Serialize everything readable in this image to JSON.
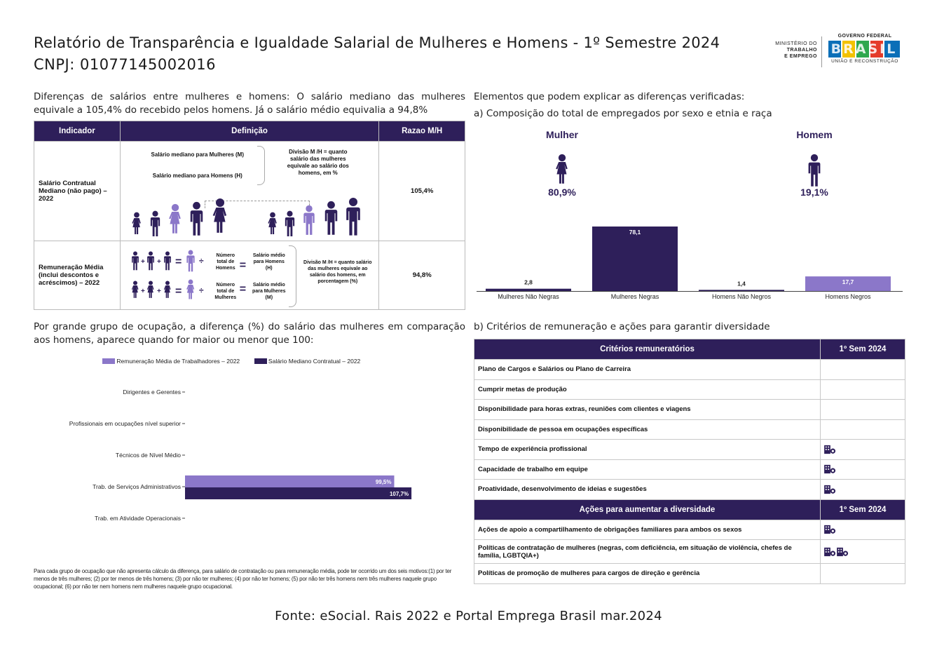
{
  "header": {
    "title": "Relatório de Transparência e Igualdade Salarial de Mulheres e Homens - 1º Semestre 2024",
    "cnpj": "CNPJ: 01077145002016",
    "ministry_logo": [
      "MINISTÉRIO DO",
      "TRABALHO",
      "E EMPREGO"
    ],
    "gov_logo_top": "GOVERNO FEDERAL",
    "gov_logo_word": "BRASIL",
    "gov_logo_bottom": "UNIÃO E RECONSTRUÇÃO"
  },
  "left_intro": "Diferenças de salários entre mulheres e homens: O salário mediano das mulheres equivale a 105,4% do recebido pelos homens. Já o salário médio equivalia a 94,8%",
  "indicator_table": {
    "headers": [
      "Indicador",
      "Definição",
      "Razao M/H"
    ],
    "row1": {
      "indicator": "Salário Contratual Mediano (não pago) – 2022",
      "def_w": "Salário mediano para Mulheres (M)",
      "def_h": "Salário mediano para Homens (H)",
      "def_div": "Divisão M /H = quanto salário das mulheres equivale ao salário dos homens, em %",
      "ratio": "105,4%"
    },
    "row2": {
      "indicator": "Remuneração Média (inclui descontos e acréscimos) – 2022",
      "n_men": "Número total de Homens",
      "avg_men": "Salário médio para Homens (H)",
      "n_women": "Número total de Mulheres",
      "avg_women": "Salário médio para Mulheres (M)",
      "def_div": "Divisão M /H = quanto salário das mulheres equivale ao salário dos homens, em porcentagem (%)",
      "ratio": "94,8%"
    }
  },
  "left_section2": "Por grande grupo de ocupação, a diferença (%) do salário das mulheres em comparação aos homens, aparece quando for maior ou menor que 100:",
  "footnote": "Para cada grupo de ocupação que não apresenta cálculo da diferença, para salário de contratação ou para remuneração média, pode ter ocorrido um dos seis motivos:(1) por ter menos de três mulheres; (2) por ter menos de três homens; (3) por não ter mulheres; (4) por não ter homens; (5) por não ter três homens nem três mulheres naquele grupo ocupacional; (6) por não ter nem homens nem mulheres naquele grupo ocupacional.",
  "right_intro": "Elementos que podem explicar as diferenças verificadas:",
  "right_a": "a) Composição do total de empregados por sexo e etnia e raça",
  "right_b": "b) Critérios de remuneração e ações para garantir diversidade",
  "gender": {
    "woman_label": "Mulher",
    "woman_pct": "80,9%",
    "man_label": "Homem",
    "man_pct": "19,1%"
  },
  "chart_data": [
    {
      "type": "bar",
      "categories": [
        "Mulheres Não Negras",
        "Mulheres Negras",
        "Homens Não Negros",
        "Homens Negros"
      ],
      "values": [
        2.8,
        78.1,
        1.4,
        17.7
      ],
      "value_labels": [
        "2,8",
        "78,1",
        "1,4",
        "17,7"
      ],
      "colors": [
        "#2e1f5a",
        "#2e1f5a",
        "#2e1f5a",
        "#8b77c9"
      ]
    },
    {
      "type": "bar",
      "orientation": "horizontal",
      "categories": [
        "Dirigentes e Gerentes",
        "Profissionais em ocupações nível superior",
        "Técnicos de Nível Médio",
        "Trab. de Serviços Administrativos",
        "Trab. em Atividade Operacionais"
      ],
      "series": [
        {
          "name": "Remuneração Média de Trabalhadores – 2022",
          "color": "#8b77c9",
          "values": [
            null,
            null,
            null,
            99.5,
            null
          ],
          "labels": [
            "",
            "",
            "",
            "99,5%",
            ""
          ]
        },
        {
          "name": "Salário Mediano Contratual – 2022",
          "color": "#2e1f5a",
          "values": [
            null,
            null,
            null,
            107.7,
            null
          ],
          "labels": [
            "",
            "",
            "",
            "107,7%",
            ""
          ]
        }
      ]
    }
  ],
  "criteria": {
    "header": "Critérios remuneratórios",
    "col": "1º Sem 2024",
    "rows": [
      {
        "label": "Plano de Cargos e Salários ou Plano de Carreira",
        "icons": 0
      },
      {
        "label": "Cumprir metas de produção",
        "icons": 0
      },
      {
        "label": "Disponibilidade para horas extras, reuniões com clientes e viagens",
        "icons": 0
      },
      {
        "label": "Disponibilidade de pessoa em ocupações específicas",
        "icons": 0
      },
      {
        "label": "Tempo de experiência profissional",
        "icons": 1
      },
      {
        "label": "Capacidade de trabalho em equipe",
        "icons": 1
      },
      {
        "label": "Proatividade, desenvolvimento de ideias e sugestões",
        "icons": 1
      }
    ]
  },
  "actions": {
    "header": "Ações para aumentar a diversidade",
    "col": "1º Sem 2024",
    "rows": [
      {
        "label": "Ações de apoio a compartilhamento de obrigações familiares para ambos os sexos",
        "icons": 1
      },
      {
        "label": "Políticas de contratação de mulheres (negras, com deficiência, em situação de violência, chefes de família, LGBTQIA+)",
        "icons": 2
      },
      {
        "label": "Políticas de promoção de mulheres para cargos de direção e gerência",
        "icons": 0
      }
    ]
  },
  "source": "Fonte: eSocial. Rais 2022 e Portal Emprega Brasil mar.2024",
  "colors": {
    "navy": "#2e1f5a",
    "purple": "#8b77c9"
  }
}
